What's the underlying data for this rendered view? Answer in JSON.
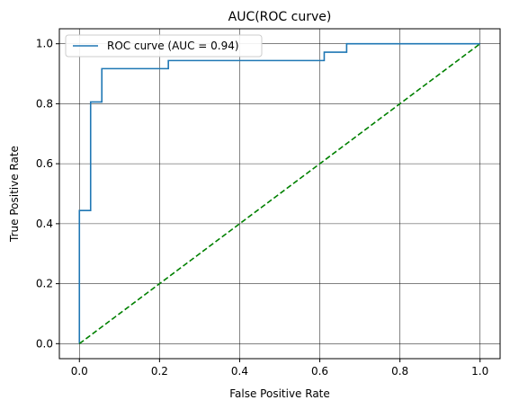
{
  "chart_data": {
    "type": "line",
    "title": "AUC(ROC curve)",
    "xlabel": "False Positive Rate",
    "ylabel": "True Positive Rate",
    "xlim": [
      -0.05,
      1.05
    ],
    "ylim": [
      -0.05,
      1.05
    ],
    "xticks": [
      0.0,
      0.2,
      0.4,
      0.6,
      0.8,
      1.0
    ],
    "yticks": [
      0.0,
      0.2,
      0.4,
      0.6,
      0.8,
      1.0
    ],
    "x_tick_labels": [
      "0.0",
      "0.2",
      "0.4",
      "0.6",
      "0.8",
      "1.0"
    ],
    "y_tick_labels": [
      "0.0",
      "0.2",
      "0.4",
      "0.6",
      "0.8",
      "1.0"
    ],
    "grid": true,
    "legend_position": "upper left",
    "series": [
      {
        "name": "ROC curve (AUC = 0.94)",
        "color": "#1f77b4",
        "style": "step-solid",
        "x": [
          0.0,
          0.0,
          0.028,
          0.028,
          0.056,
          0.056,
          0.222,
          0.222,
          0.611,
          0.611,
          0.667,
          0.667,
          1.0
        ],
        "y": [
          0.0,
          0.444,
          0.444,
          0.806,
          0.806,
          0.917,
          0.917,
          0.944,
          0.944,
          0.972,
          0.972,
          1.0,
          1.0
        ]
      },
      {
        "color": "#008000",
        "style": "dashed",
        "x": [
          0.0,
          1.0
        ],
        "y": [
          0.0,
          1.0
        ]
      }
    ]
  }
}
